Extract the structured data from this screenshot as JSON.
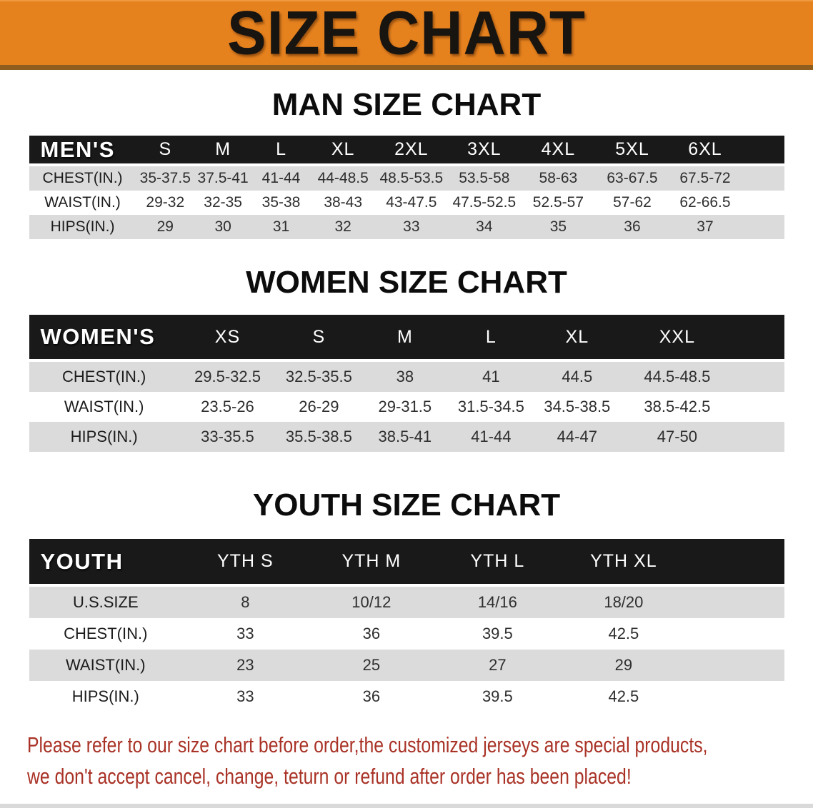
{
  "banner": {
    "title": "SIZE CHART"
  },
  "sections": [
    {
      "heading": "MAN SIZE CHART",
      "header_label": "MEN'S",
      "columns": [
        "S",
        "M",
        "L",
        "XL",
        "2XL",
        "3XL",
        "4XL",
        "5XL",
        "6XL"
      ],
      "rows": [
        {
          "label": "CHEST(IN.)",
          "values": [
            "35-37.5",
            "37.5-41",
            "41-44",
            "44-48.5",
            "48.5-53.5",
            "53.5-58",
            "58-63",
            "63-67.5",
            "67.5-72"
          ]
        },
        {
          "label": "WAIST(IN.)",
          "values": [
            "29-32",
            "32-35",
            "35-38",
            "38-43",
            "43-47.5",
            "47.5-52.5",
            "52.5-57",
            "57-62",
            "62-66.5"
          ]
        },
        {
          "label": "HIPS(IN.)",
          "values": [
            "29",
            "30",
            "31",
            "32",
            "33",
            "34",
            "35",
            "36",
            "37"
          ]
        }
      ]
    },
    {
      "heading": "WOMEN SIZE CHART",
      "header_label": "WOMEN'S",
      "columns": [
        "XS",
        "S",
        "M",
        "L",
        "XL",
        "XXL"
      ],
      "rows": [
        {
          "label": "CHEST(IN.)",
          "values": [
            "29.5-32.5",
            "32.5-35.5",
            "38",
            "41",
            "44.5",
            "44.5-48.5"
          ]
        },
        {
          "label": "WAIST(IN.)",
          "values": [
            "23.5-26",
            "26-29",
            "29-31.5",
            "31.5-34.5",
            "34.5-38.5",
            "38.5-42.5"
          ]
        },
        {
          "label": "HIPS(IN.)",
          "values": [
            "33-35.5",
            "35.5-38.5",
            "38.5-41",
            "41-44",
            "44-47",
            "47-50"
          ]
        }
      ]
    },
    {
      "heading": "YOUTH SIZE CHART",
      "header_label": "YOUTH",
      "columns": [
        "YTH S",
        "YTH M",
        "YTH L",
        "YTH XL"
      ],
      "rows": [
        {
          "label": "U.S.SIZE",
          "values": [
            "8",
            "10/12",
            "14/16",
            "18/20"
          ]
        },
        {
          "label": "CHEST(IN.)",
          "values": [
            "33",
            "36",
            "39.5",
            "42.5"
          ]
        },
        {
          "label": "WAIST(IN.)",
          "values": [
            "23",
            "25",
            "27",
            "29"
          ]
        },
        {
          "label": "HIPS(IN.)",
          "values": [
            "33",
            "36",
            "39.5",
            "42.5"
          ]
        }
      ]
    }
  ],
  "disclaimer": {
    "line1": "Please refer to our size chart before order,the customized jerseys are special products,",
    "line2": "we don't accept cancel, change, teturn or refund after order has been placed!"
  },
  "colors": {
    "banner_bg": "#E6821E",
    "banner_strip": "#8F5E1E",
    "header_bar": "#191919",
    "row_stripe": "#DBDBDB",
    "disclaimer_text": "#A93226"
  }
}
